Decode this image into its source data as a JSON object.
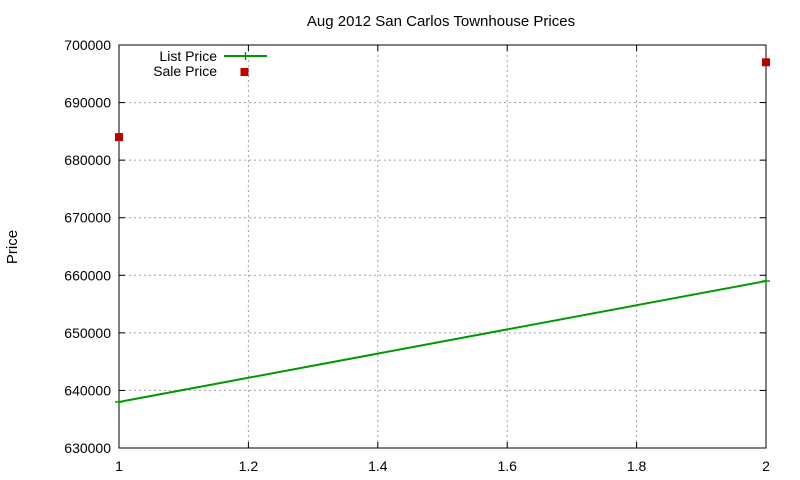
{
  "chart_data": {
    "type": "line",
    "title": "Aug 2012 San Carlos Townhouse Prices",
    "xlabel": "",
    "ylabel": "Price",
    "xlim": [
      1,
      2
    ],
    "ylim": [
      630000,
      700000
    ],
    "x_ticks": [
      1,
      1.2,
      1.4,
      1.6,
      1.8,
      2
    ],
    "x_tick_labels": [
      "1",
      "1.2",
      "1.4",
      "1.6",
      "1.8",
      "2"
    ],
    "y_ticks": [
      630000,
      640000,
      650000,
      660000,
      670000,
      680000,
      690000,
      700000
    ],
    "y_tick_labels": [
      "630000",
      "640000",
      "650000",
      "660000",
      "670000",
      "680000",
      "690000",
      "700000"
    ],
    "grid": true,
    "legend_position": "top-left",
    "series": [
      {
        "name": "List Price",
        "style": "line-with-points",
        "color": "#009900",
        "points": [
          {
            "x": 1,
            "y": 638000
          },
          {
            "x": 2,
            "y": 659000
          }
        ]
      },
      {
        "name": "Sale Price",
        "style": "points",
        "color": "#bb0000",
        "points": [
          {
            "x": 1,
            "y": 684000
          },
          {
            "x": 2,
            "y": 697000
          }
        ]
      }
    ]
  }
}
